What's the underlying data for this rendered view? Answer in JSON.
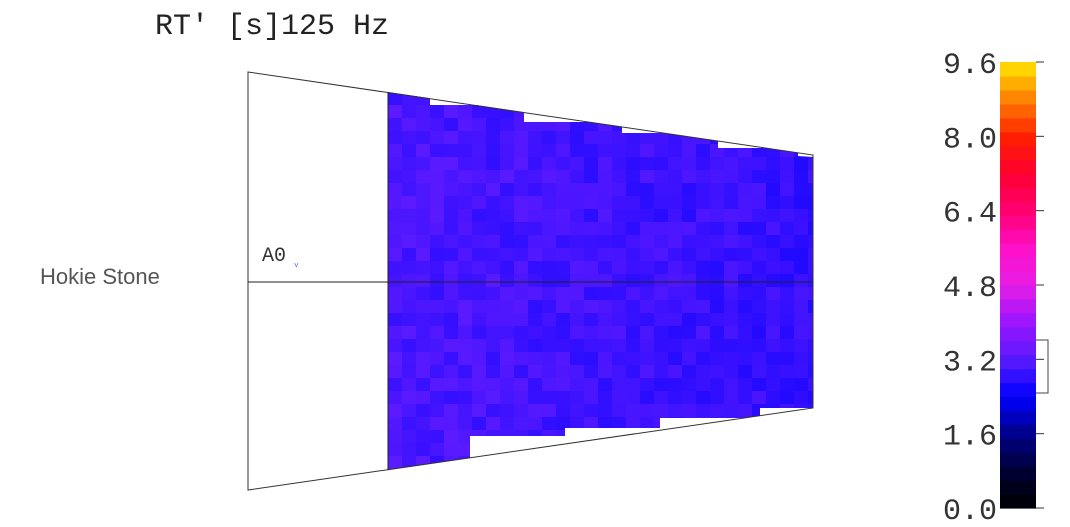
{
  "title": "RT' [s]125 Hz",
  "side_label": "Hokie Stone",
  "receiver_label": "A0",
  "chart_data": {
    "type": "heatmap",
    "title": "RT' [s]125 Hz",
    "quantity": "RT'",
    "unit": "s",
    "frequency": "125 Hz",
    "colorbar": {
      "min": 0.0,
      "max": 9.6,
      "ticks": [
        {
          "value": 0.0,
          "label": "0.0"
        },
        {
          "value": 1.6,
          "label": "1.6"
        },
        {
          "value": 3.2,
          "label": "3.2"
        },
        {
          "value": 4.8,
          "label": "4.8"
        },
        {
          "value": 6.4,
          "label": "6.4"
        },
        {
          "value": 8.0,
          "label": "8.0"
        },
        {
          "value": 9.6,
          "label": "9.6"
        }
      ],
      "range_bracket": [
        2.4,
        3.6
      ],
      "stops": [
        {
          "value": 0.0,
          "color": "#000000"
        },
        {
          "value": 0.8,
          "color": "#000033"
        },
        {
          "value": 1.6,
          "color": "#00008a"
        },
        {
          "value": 2.4,
          "color": "#0000ff"
        },
        {
          "value": 3.2,
          "color": "#5a1aff"
        },
        {
          "value": 4.0,
          "color": "#9a14ff"
        },
        {
          "value": 4.8,
          "color": "#e61ee6"
        },
        {
          "value": 5.6,
          "color": "#ff10c8"
        },
        {
          "value": 6.4,
          "color": "#ff0070"
        },
        {
          "value": 7.2,
          "color": "#ff0030"
        },
        {
          "value": 8.0,
          "color": "#ff2000"
        },
        {
          "value": 8.8,
          "color": "#ff8000"
        },
        {
          "value": 9.6,
          "color": "#ffe800"
        }
      ]
    },
    "map_value_range": [
      2.6,
      3.4
    ],
    "receivers": [
      "A0"
    ]
  }
}
